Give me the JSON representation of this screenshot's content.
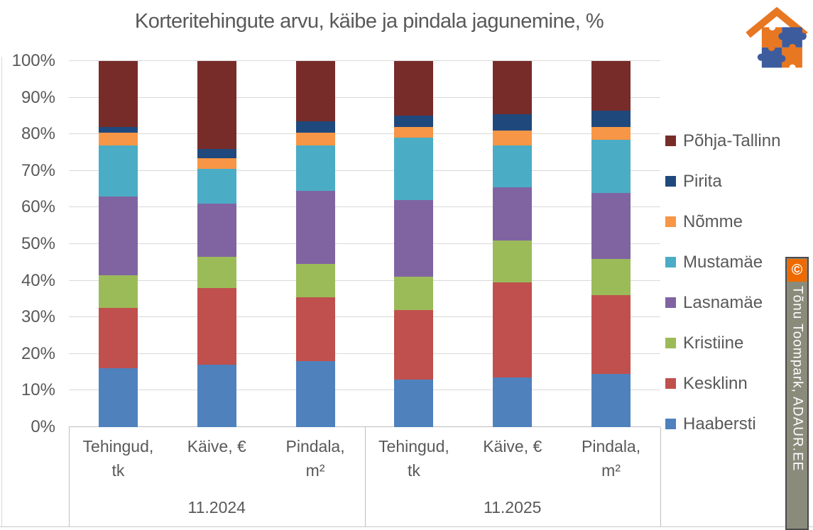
{
  "title": "Korteritehingute arvu, käibe ja pindala jagunemine, %",
  "watermark": {
    "copyright_symbol": "©",
    "text": "Tõnu Toompark, ADAUR.EE"
  },
  "logo": {
    "name": "adaur-house-puzzle-logo",
    "orange": "#e87722",
    "blue": "#3d5c9e"
  },
  "chart_data": {
    "type": "bar",
    "subtype": "stacked-100-percent",
    "title": "Korteritehingute arvu, käibe ja pindala jagunemine, %",
    "grid": true,
    "legend_position": "right",
    "ylim": [
      0,
      100
    ],
    "y_ticks": [
      "0%",
      "10%",
      "20%",
      "30%",
      "40%",
      "50%",
      "60%",
      "70%",
      "80%",
      "90%",
      "100%"
    ],
    "groups": [
      "11.2024",
      "11.2025"
    ],
    "categories": [
      "Tehingud, tk",
      "Käive, €",
      "Pindala, m²",
      "Tehingud, tk",
      "Käive, €",
      "Pindala, m²"
    ],
    "category_lines": [
      [
        "Tehingud,",
        "tk"
      ],
      [
        "Käive, €"
      ],
      [
        "Pindala,",
        "m²"
      ],
      [
        "Tehingud,",
        "tk"
      ],
      [
        "Käive, €"
      ],
      [
        "Pindala,",
        "m²"
      ]
    ],
    "series_bottom_to_top": [
      {
        "name": "Haabersti",
        "color": "#4f81bd",
        "values": [
          16,
          17,
          18,
          13,
          13.5,
          14.5
        ]
      },
      {
        "name": "Kesklinn",
        "color": "#c0504d",
        "values": [
          16.5,
          21,
          17.5,
          19,
          26,
          21.5
        ]
      },
      {
        "name": "Kristiine",
        "color": "#9bbb59",
        "values": [
          9,
          8.5,
          9,
          9,
          11.5,
          10
        ]
      },
      {
        "name": "Lasnamäe",
        "color": "#8064a2",
        "values": [
          21.5,
          14.5,
          20,
          21,
          14.5,
          18
        ]
      },
      {
        "name": "Mustamäe",
        "color": "#4bacc6",
        "values": [
          14,
          9.5,
          12.5,
          17,
          11.5,
          14.5
        ]
      },
      {
        "name": "Nõmme",
        "color": "#f79646",
        "values": [
          3.5,
          3,
          3.5,
          3,
          4,
          3.5
        ]
      },
      {
        "name": "Pirita",
        "color": "#1f497d",
        "values": [
          1.5,
          2.5,
          3,
          3,
          4.5,
          4.5
        ]
      },
      {
        "name": "Põhja-Tallinn",
        "color": "#772c2a",
        "values": [
          18,
          24,
          16.5,
          15,
          14.5,
          13.5
        ]
      }
    ],
    "legend_order_top_to_bottom": [
      "Põhja-Tallinn",
      "Pirita",
      "Nõmme",
      "Mustamäe",
      "Lasnamäe",
      "Kristiine",
      "Kesklinn",
      "Haabersti"
    ]
  }
}
